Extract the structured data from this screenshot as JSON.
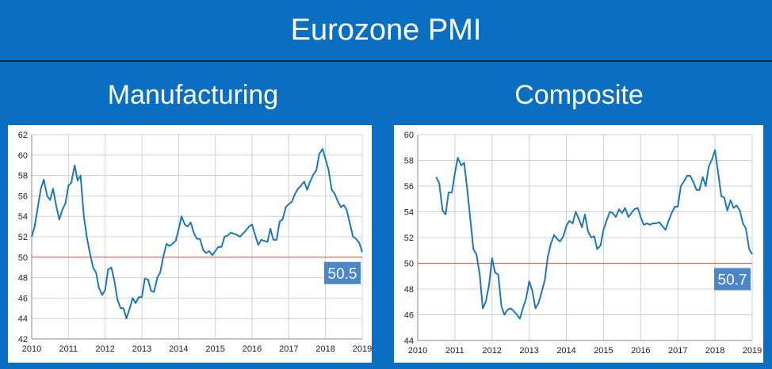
{
  "header": {
    "title": "Eurozone PMI"
  },
  "colors": {
    "background": "#0a6fc2",
    "line": "#1f77b4",
    "reference": "#e06666",
    "badge": "#4a86c8",
    "grid": "#d0d0d0"
  },
  "chart_data": [
    {
      "type": "line",
      "title": "Manufacturing",
      "reference_line": 50,
      "callout": "50.5",
      "xlim": [
        2010,
        2019
      ],
      "ylim": [
        42,
        62
      ],
      "x_ticks": [
        "2010",
        "2011",
        "2012",
        "2013",
        "2014",
        "2015",
        "2016",
        "2017",
        "2018",
        "2019"
      ],
      "y_ticks": [
        "42",
        "44",
        "46",
        "48",
        "50",
        "52",
        "54",
        "56",
        "58",
        "60",
        "62"
      ],
      "grid": true,
      "series": [
        {
          "x": [
            2010.0,
            2010.08,
            2010.17,
            2010.25,
            2010.33,
            2010.42,
            2010.5,
            2010.58,
            2010.67,
            2010.75,
            2010.83,
            2010.92,
            2011.0,
            2011.08,
            2011.17,
            2011.25,
            2011.33,
            2011.42,
            2011.5,
            2011.58,
            2011.67,
            2011.75,
            2011.83,
            2011.92,
            2012.0,
            2012.08,
            2012.17,
            2012.25,
            2012.33,
            2012.42,
            2012.5,
            2012.58,
            2012.67,
            2012.75,
            2012.83,
            2012.92,
            2013.0,
            2013.08,
            2013.17,
            2013.25,
            2013.33,
            2013.42,
            2013.5,
            2013.58,
            2013.67,
            2013.75,
            2013.83,
            2013.92,
            2014.0,
            2014.08,
            2014.17,
            2014.25,
            2014.33,
            2014.42,
            2014.5,
            2014.58,
            2014.67,
            2014.75,
            2014.83,
            2014.92,
            2015.0,
            2015.08,
            2015.17,
            2015.25,
            2015.33,
            2015.42,
            2015.5,
            2015.58,
            2015.67,
            2015.75,
            2015.83,
            2015.92,
            2016.0,
            2016.08,
            2016.17,
            2016.25,
            2016.33,
            2016.42,
            2016.5,
            2016.58,
            2016.67,
            2016.75,
            2016.83,
            2016.92,
            2017.0,
            2017.08,
            2017.17,
            2017.25,
            2017.33,
            2017.42,
            2017.5,
            2017.58,
            2017.67,
            2017.75,
            2017.83,
            2017.92,
            2018.0,
            2018.08,
            2018.17,
            2018.25,
            2018.33,
            2018.42,
            2018.5,
            2018.58,
            2018.67,
            2018.75,
            2018.83,
            2018.92,
            2019.0
          ],
          "y": [
            52.0,
            53.0,
            55.0,
            56.7,
            57.6,
            56.0,
            55.6,
            56.7,
            55.0,
            53.7,
            54.6,
            55.3,
            57.0,
            57.3,
            59.0,
            57.5,
            58.0,
            54.0,
            52.0,
            50.5,
            49.0,
            48.5,
            47.0,
            46.3,
            46.8,
            48.8,
            49.0,
            47.7,
            45.9,
            45.0,
            45.0,
            44.0,
            45.0,
            46.0,
            45.5,
            46.1,
            46.1,
            47.9,
            47.8,
            46.7,
            46.6,
            48.0,
            48.5,
            50.0,
            51.3,
            51.1,
            51.3,
            51.6,
            52.7,
            54.0,
            53.2,
            53.0,
            53.4,
            52.3,
            51.8,
            51.8,
            50.7,
            50.4,
            50.6,
            50.2,
            50.6,
            51.0,
            51.0,
            52.0,
            52.1,
            52.4,
            52.3,
            52.2,
            52.0,
            52.3,
            52.6,
            53.0,
            53.2,
            52.2,
            51.2,
            51.7,
            51.6,
            51.5,
            52.8,
            51.7,
            51.7,
            53.5,
            53.7,
            54.9,
            55.2,
            55.4,
            56.2,
            56.7,
            57.0,
            57.4,
            56.6,
            57.4,
            58.1,
            58.5,
            60.1,
            60.6,
            59.6,
            58.6,
            56.6,
            56.2,
            55.5,
            54.9,
            55.1,
            54.6,
            53.2,
            52.0,
            51.8,
            51.4,
            50.5
          ]
        }
      ]
    },
    {
      "type": "line",
      "title": "Composite",
      "reference_line": 50,
      "callout": "50.7",
      "xlim": [
        2010,
        2019
      ],
      "ylim": [
        44,
        60
      ],
      "x_ticks": [
        "2010",
        "2011",
        "2012",
        "2013",
        "2014",
        "2015",
        "2016",
        "2017",
        "2018",
        "2019"
      ],
      "y_ticks": [
        "44",
        "46",
        "48",
        "50",
        "52",
        "54",
        "56",
        "58",
        "60"
      ],
      "grid": true,
      "series": [
        {
          "x": [
            2010.5,
            2010.58,
            2010.67,
            2010.75,
            2010.83,
            2010.92,
            2011.0,
            2011.08,
            2011.17,
            2011.25,
            2011.33,
            2011.42,
            2011.5,
            2011.58,
            2011.67,
            2011.75,
            2011.83,
            2011.92,
            2012.0,
            2012.08,
            2012.17,
            2012.25,
            2012.33,
            2012.42,
            2012.5,
            2012.58,
            2012.67,
            2012.75,
            2012.83,
            2012.92,
            2013.0,
            2013.08,
            2013.17,
            2013.25,
            2013.33,
            2013.42,
            2013.5,
            2013.58,
            2013.67,
            2013.75,
            2013.83,
            2013.92,
            2014.0,
            2014.08,
            2014.17,
            2014.25,
            2014.33,
            2014.42,
            2014.5,
            2014.58,
            2014.67,
            2014.75,
            2014.83,
            2014.92,
            2015.0,
            2015.08,
            2015.17,
            2015.25,
            2015.33,
            2015.42,
            2015.5,
            2015.58,
            2015.67,
            2015.75,
            2015.83,
            2015.92,
            2016.0,
            2016.08,
            2016.17,
            2016.25,
            2016.33,
            2016.42,
            2016.5,
            2016.58,
            2016.67,
            2016.75,
            2016.83,
            2016.92,
            2017.0,
            2017.08,
            2017.17,
            2017.25,
            2017.33,
            2017.42,
            2017.5,
            2017.58,
            2017.67,
            2017.75,
            2017.83,
            2017.92,
            2018.0,
            2018.08,
            2018.17,
            2018.25,
            2018.33,
            2018.42,
            2018.5,
            2018.58,
            2018.67,
            2018.75,
            2018.83,
            2018.92,
            2019.0
          ],
          "y": [
            56.7,
            56.2,
            54.1,
            53.8,
            55.5,
            55.5,
            57.0,
            58.2,
            57.6,
            57.8,
            55.8,
            53.3,
            51.1,
            50.7,
            49.1,
            46.5,
            47.0,
            48.3,
            50.4,
            49.3,
            49.1,
            46.7,
            46.0,
            46.4,
            46.5,
            46.3,
            46.0,
            45.7,
            46.5,
            47.3,
            48.6,
            47.9,
            46.5,
            46.9,
            47.7,
            48.7,
            50.5,
            51.5,
            52.2,
            51.9,
            51.7,
            52.1,
            52.9,
            53.3,
            53.1,
            54.0,
            53.5,
            52.8,
            53.8,
            52.5,
            52.0,
            52.1,
            51.1,
            51.4,
            52.6,
            53.3,
            54.0,
            53.9,
            53.6,
            54.2,
            53.9,
            54.3,
            53.6,
            53.9,
            54.2,
            54.3,
            53.6,
            53.0,
            53.1,
            53.0,
            53.1,
            53.1,
            53.2,
            52.9,
            52.6,
            53.3,
            53.9,
            54.4,
            54.4,
            56.0,
            56.4,
            56.8,
            56.8,
            56.3,
            55.7,
            55.7,
            56.7,
            56.0,
            57.5,
            58.1,
            58.8,
            57.1,
            55.2,
            55.1,
            54.1,
            54.9,
            54.3,
            54.5,
            54.1,
            53.1,
            52.7,
            51.1,
            50.7
          ]
        }
      ]
    }
  ]
}
